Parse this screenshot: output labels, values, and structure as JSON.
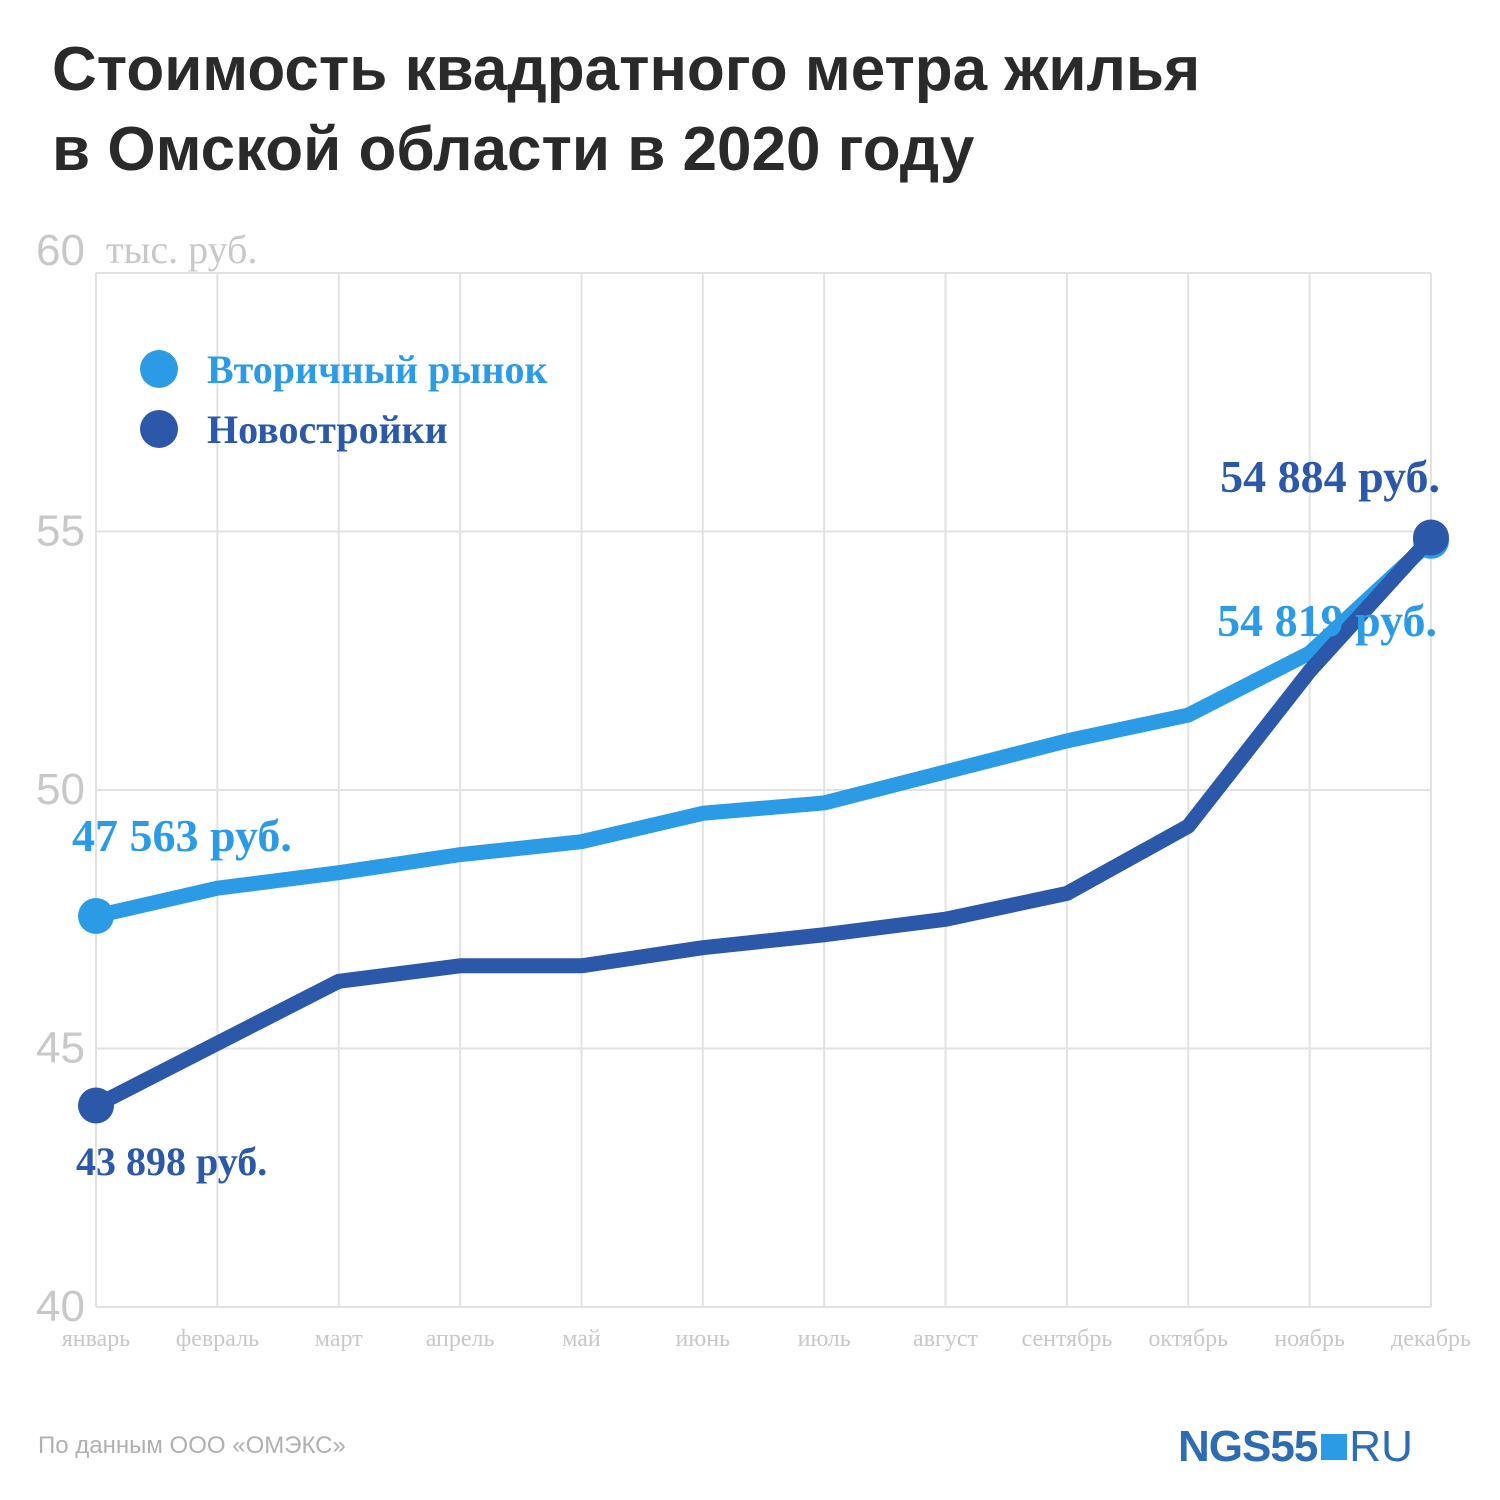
{
  "title_line1": "Стоимость квадратного метра жилья",
  "title_line2": "в Омской области в 2020 году",
  "source": "По данным ООО «ОМЭКС»",
  "logo": {
    "text": "NGS55",
    "suffix": "RU"
  },
  "chart_data": {
    "type": "line",
    "categories": [
      "январь",
      "февраль",
      "март",
      "апрель",
      "май",
      "июнь",
      "июль",
      "август",
      "сентябрь",
      "октябрь",
      "ноябрь",
      "декабрь"
    ],
    "y_unit": "тыс. руб.",
    "ylim": [
      40,
      60
    ],
    "yticks": [
      40,
      45,
      50,
      55,
      60
    ],
    "grid": true,
    "legend_position": "top-left",
    "series": [
      {
        "name": "Вторичный рынок",
        "color": "#2b9be6",
        "values": [
          47.563,
          48.1,
          48.4,
          48.75,
          49.0,
          49.55,
          49.75,
          50.35,
          50.95,
          51.45,
          52.65,
          54.819
        ],
        "labels": {
          "first": "47 563 руб.",
          "last": "54 819 руб."
        }
      },
      {
        "name": "Новостройки",
        "color": "#2b58a8",
        "values": [
          43.898,
          45.1,
          46.3,
          46.6,
          46.6,
          46.95,
          47.2,
          47.5,
          48.0,
          49.3,
          52.3,
          54.884
        ],
        "labels": {
          "first": "43 898 руб.",
          "last": "54 884 руб."
        }
      }
    ]
  }
}
